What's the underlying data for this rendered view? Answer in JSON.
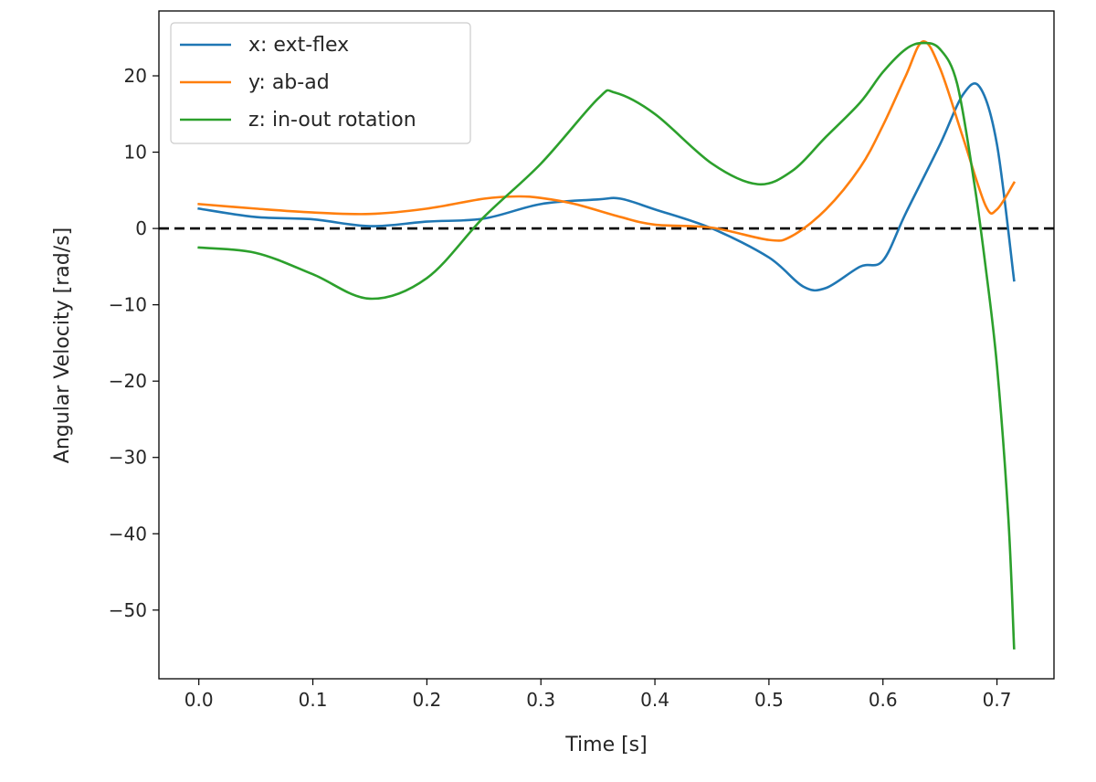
{
  "chart_data": {
    "type": "line",
    "title": "",
    "xlabel": "Time [s]",
    "ylabel": "Angular Velocity [rad/s]",
    "xlim": [
      -0.035,
      0.75
    ],
    "ylim": [
      -59,
      28.5
    ],
    "x_ticks": [
      0.0,
      0.1,
      0.2,
      0.3,
      0.4,
      0.5,
      0.6,
      0.7
    ],
    "x_tick_labels": [
      "0.0",
      "0.1",
      "0.2",
      "0.3",
      "0.4",
      "0.5",
      "0.6",
      "0.7"
    ],
    "y_ticks": [
      20,
      10,
      0,
      -10,
      -20,
      -30,
      -40,
      -50
    ],
    "y_tick_labels": [
      "20",
      "10",
      "0",
      "−10",
      "−20",
      "−30",
      "−40",
      "−50"
    ],
    "grid": false,
    "legend_position": "upper-left",
    "reference_line": {
      "y": 0,
      "style": "dashed",
      "color": "#000000"
    },
    "series": [
      {
        "name": "x: ext-flex",
        "color": "#1f77b4",
        "x": [
          0.0,
          0.05,
          0.1,
          0.15,
          0.2,
          0.25,
          0.3,
          0.35,
          0.37,
          0.4,
          0.45,
          0.5,
          0.53,
          0.55,
          0.58,
          0.6,
          0.62,
          0.65,
          0.67,
          0.685,
          0.7,
          0.715
        ],
        "y": [
          2.6,
          1.5,
          1.2,
          0.3,
          0.9,
          1.3,
          3.2,
          3.8,
          3.9,
          2.5,
          0.0,
          -3.8,
          -7.6,
          -7.8,
          -5.0,
          -4.2,
          2.0,
          11.0,
          17.5,
          18.5,
          11.0,
          -6.8
        ]
      },
      {
        "name": "y: ab-ad",
        "color": "#ff7f0e",
        "x": [
          0.0,
          0.05,
          0.1,
          0.15,
          0.2,
          0.25,
          0.28,
          0.3,
          0.33,
          0.37,
          0.4,
          0.45,
          0.5,
          0.52,
          0.55,
          0.58,
          0.6,
          0.62,
          0.635,
          0.65,
          0.67,
          0.69,
          0.7,
          0.715
        ],
        "y": [
          3.2,
          2.6,
          2.1,
          1.9,
          2.6,
          3.9,
          4.2,
          4.0,
          3.2,
          1.5,
          0.5,
          0.1,
          -1.5,
          -1.0,
          2.5,
          8.0,
          13.5,
          20.0,
          24.5,
          21.0,
          12.0,
          3.0,
          2.5,
          6.0
        ]
      },
      {
        "name": "z: in-out rotation",
        "color": "#2ca02c",
        "x": [
          0.0,
          0.05,
          0.1,
          0.15,
          0.2,
          0.25,
          0.3,
          0.35,
          0.365,
          0.4,
          0.45,
          0.49,
          0.52,
          0.55,
          0.58,
          0.6,
          0.62,
          0.635,
          0.65,
          0.665,
          0.68,
          0.69,
          0.7,
          0.71,
          0.715
        ],
        "y": [
          -2.5,
          -3.2,
          -6.0,
          -9.2,
          -6.5,
          1.5,
          8.5,
          17.0,
          17.8,
          15.0,
          8.5,
          5.8,
          7.5,
          12.0,
          16.5,
          20.5,
          23.5,
          24.3,
          23.5,
          19.0,
          6.0,
          -5.0,
          -18.0,
          -38.0,
          -55.0
        ]
      }
    ]
  }
}
